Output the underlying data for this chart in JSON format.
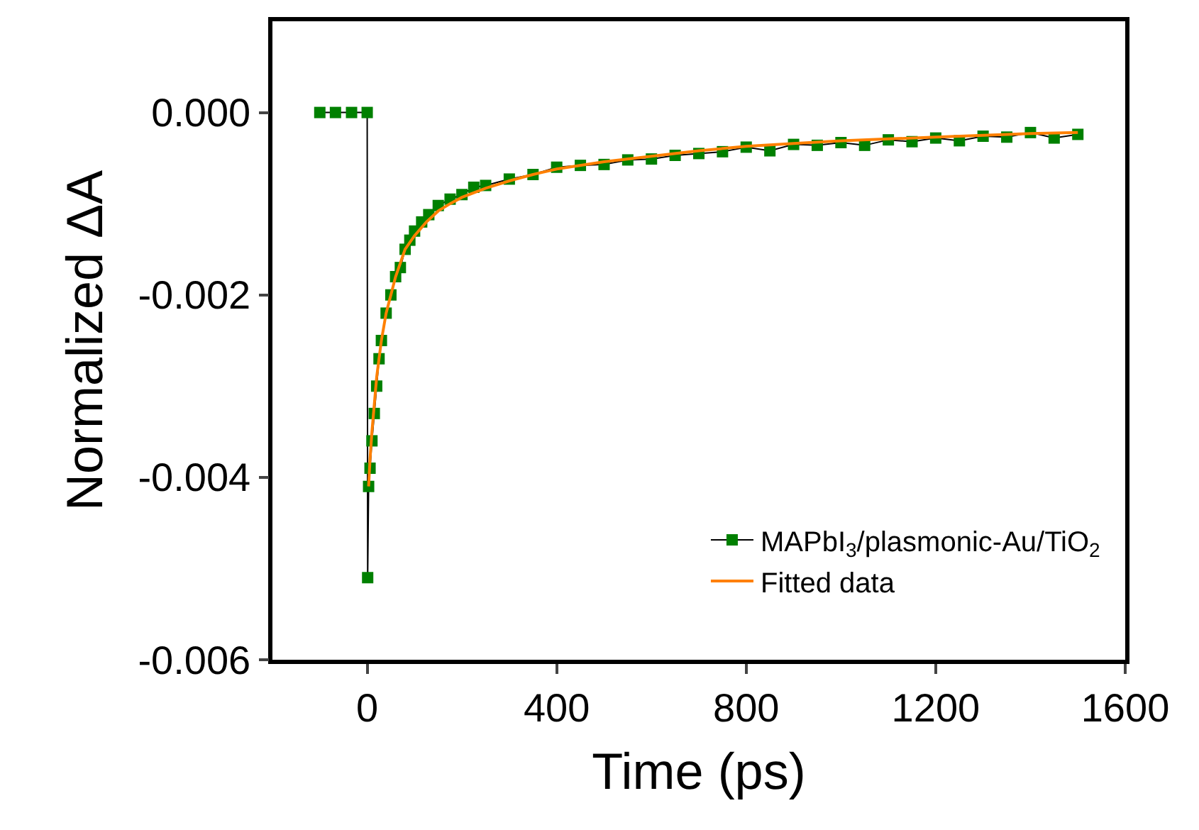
{
  "chart_data": {
    "type": "line",
    "xlabel": "Time (ps)",
    "ylabel": "Normalized ΔA",
    "xlim": [
      -200,
      1600
    ],
    "xticks": [
      0,
      400,
      800,
      1200,
      1600
    ],
    "ylim": [
      -0.006,
      0.001
    ],
    "yticks": [
      {
        "value": -0.006,
        "label": "-0.006"
      },
      {
        "value": -0.004,
        "label": "-0.004"
      },
      {
        "value": -0.002,
        "label": "-0.002"
      },
      {
        "value": 0,
        "label": "0.000"
      }
    ],
    "legend": "bottom right",
    "series": [
      {
        "name": "MAPbI$_{3}$/plasmonic-Au/TiO$_{2}$",
        "marker": "square",
        "color": "#008000",
        "x": [
          -100,
          -67,
          -33,
          0,
          1,
          3,
          6,
          10,
          15,
          20,
          25,
          30,
          40,
          50,
          60,
          70,
          80,
          90,
          100,
          115,
          130,
          150,
          175,
          200,
          225,
          250,
          300,
          350,
          400,
          450,
          500,
          550,
          600,
          650,
          700,
          750,
          800,
          850,
          900,
          950,
          1000,
          1050,
          1100,
          1150,
          1200,
          1250,
          1300,
          1350,
          1400,
          1450,
          1500
        ],
        "values": [
          0,
          0,
          0,
          0,
          -0.0051,
          -0.0041,
          -0.0039,
          -0.0036,
          -0.0033,
          -0.003,
          -0.0027,
          -0.0025,
          -0.0022,
          -0.002,
          -0.0018,
          -0.0017,
          -0.0015,
          -0.0014,
          -0.0013,
          -0.0012,
          -0.00112,
          -0.00102,
          -0.00095,
          -0.0009,
          -0.00082,
          -0.0008,
          -0.00073,
          -0.00068,
          -0.0006,
          -0.00058,
          -0.00057,
          -0.00052,
          -0.00051,
          -0.00047,
          -0.00045,
          -0.00043,
          -0.00038,
          -0.00042,
          -0.00035,
          -0.00036,
          -0.00033,
          -0.00036,
          -0.0003,
          -0.00032,
          -0.00028,
          -0.00031,
          -0.00026,
          -0.00027,
          -0.00022,
          -0.00028,
          -0.00024
        ]
      },
      {
        "name": "Fitted data",
        "marker": "none",
        "line_style": "solid",
        "color": "#ff8000",
        "x": [
          3,
          6,
          10,
          15,
          20,
          30,
          40,
          50,
          60,
          80,
          100,
          125,
          150,
          175,
          200,
          250,
          300,
          350,
          400,
          500,
          600,
          700,
          800,
          900,
          1000,
          1100,
          1200,
          1300,
          1400,
          1500
        ],
        "values": [
          -0.0041,
          -0.0038,
          -0.0035,
          -0.0032,
          -0.0029,
          -0.0025,
          -0.0022,
          -0.002,
          -0.0018,
          -0.0015,
          -0.00135,
          -0.0012,
          -0.00108,
          -0.001,
          -0.00093,
          -0.00083,
          -0.00075,
          -0.00068,
          -0.00062,
          -0.00054,
          -0.00048,
          -0.00042,
          -0.00037,
          -0.00034,
          -0.00031,
          -0.00029,
          -0.00027,
          -0.00025,
          -0.00023,
          -0.00022
        ]
      }
    ]
  }
}
